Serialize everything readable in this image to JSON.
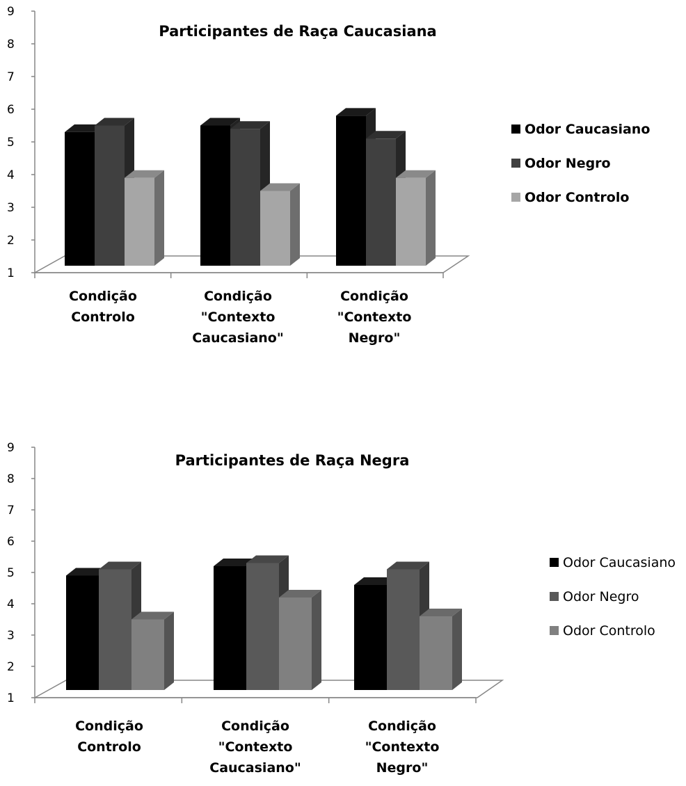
{
  "chart_data": [
    {
      "type": "bar",
      "title": "Participantes de Raça Caucasiana",
      "xlabel": "",
      "ylabel": "",
      "ylim": [
        1,
        9
      ],
      "yticks": [
        "1",
        "2",
        "3",
        "4",
        "5",
        "6",
        "7",
        "8",
        "9"
      ],
      "categories": [
        [
          "Condição",
          "Controlo"
        ],
        [
          "Condição",
          "\"Contexto",
          "Caucasiano\""
        ],
        [
          "Condição",
          "\"Contexto",
          "Negro\""
        ]
      ],
      "series": [
        {
          "name": "Odor Caucasiano",
          "values": [
            5.3,
            5.5,
            5.8
          ]
        },
        {
          "name": "Odor Negro",
          "values": [
            5.5,
            5.4,
            5.1
          ]
        },
        {
          "name": "Odor Controlo",
          "values": [
            3.9,
            3.5,
            3.9
          ]
        }
      ],
      "colors": {
        "Odor Caucasiano": {
          "front": "#000000",
          "side": "#222222",
          "top": "#1a1a1a"
        },
        "Odor Negro": {
          "front": "#404040",
          "side": "#262626",
          "top": "#303030"
        },
        "Odor Controlo": {
          "front": "#a6a6a6",
          "side": "#6e6e6e",
          "top": "#8a8a8a"
        }
      },
      "legend_position": "right",
      "legend_bold": true,
      "grid": false
    },
    {
      "type": "bar",
      "title": "Participantes de Raça Negra",
      "xlabel": "",
      "ylabel": "",
      "ylim": [
        1,
        9
      ],
      "yticks": [
        "1",
        "2",
        "3",
        "4",
        "5",
        "6",
        "7",
        "8",
        "9"
      ],
      "categories": [
        [
          "Condição",
          "Controlo"
        ],
        [
          "Condição",
          "\"Contexto",
          "Caucasiano\""
        ],
        [
          "Condição",
          "\"Contexto",
          "Negro\""
        ]
      ],
      "series": [
        {
          "name": "Odor Caucasiano",
          "values": [
            4.9,
            5.2,
            4.6
          ]
        },
        {
          "name": "Odor Negro",
          "values": [
            5.1,
            5.3,
            5.1
          ]
        },
        {
          "name": "Odor Controlo",
          "values": [
            3.5,
            4.2,
            3.6
          ]
        }
      ],
      "colors": {
        "Odor Caucasiano": {
          "front": "#000000",
          "side": "#222222",
          "top": "#1a1a1a"
        },
        "Odor Negro": {
          "front": "#595959",
          "side": "#383838",
          "top": "#474747"
        },
        "Odor Controlo": {
          "front": "#808080",
          "side": "#545454",
          "top": "#6a6a6a"
        }
      },
      "legend_position": "right",
      "legend_bold": false,
      "grid": false
    }
  ]
}
